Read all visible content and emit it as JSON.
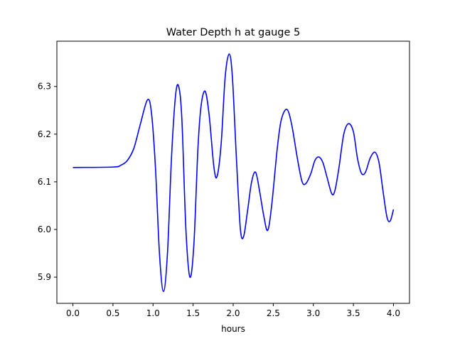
{
  "chart_data": {
    "type": "line",
    "title": "Water Depth h at gauge 5",
    "xlabel": "hours",
    "ylabel": "",
    "xlim": [
      -0.2,
      4.2
    ],
    "ylim": [
      5.845,
      6.395
    ],
    "x_ticks": [
      {
        "value": 0.0,
        "label": "0.0"
      },
      {
        "value": 0.5,
        "label": "0.5"
      },
      {
        "value": 1.0,
        "label": "1.0"
      },
      {
        "value": 1.5,
        "label": "1.5"
      },
      {
        "value": 2.0,
        "label": "2.0"
      },
      {
        "value": 2.5,
        "label": "2.5"
      },
      {
        "value": 3.0,
        "label": "3.0"
      },
      {
        "value": 3.5,
        "label": "3.5"
      },
      {
        "value": 4.0,
        "label": "4.0"
      }
    ],
    "y_ticks": [
      {
        "value": 5.9,
        "label": "5.9"
      },
      {
        "value": 6.0,
        "label": "6.0"
      },
      {
        "value": 6.1,
        "label": "6.1"
      },
      {
        "value": 6.2,
        "label": "6.2"
      },
      {
        "value": 6.3,
        "label": "6.3"
      }
    ],
    "grid": false,
    "series": [
      {
        "color": "#0000ff",
        "points": [
          [
            0.0,
            6.13
          ],
          [
            0.5,
            6.131
          ],
          [
            0.6,
            6.135
          ],
          [
            0.68,
            6.145
          ],
          [
            0.76,
            6.17
          ],
          [
            0.84,
            6.22
          ],
          [
            0.93,
            6.272
          ],
          [
            0.98,
            6.245
          ],
          [
            1.03,
            6.13
          ],
          [
            1.08,
            5.95
          ],
          [
            1.13,
            5.87
          ],
          [
            1.18,
            5.95
          ],
          [
            1.23,
            6.15
          ],
          [
            1.28,
            6.28
          ],
          [
            1.32,
            6.3
          ],
          [
            1.36,
            6.23
          ],
          [
            1.41,
            6.0
          ],
          [
            1.46,
            5.9
          ],
          [
            1.51,
            5.97
          ],
          [
            1.56,
            6.17
          ],
          [
            1.6,
            6.26
          ],
          [
            1.65,
            6.29
          ],
          [
            1.7,
            6.24
          ],
          [
            1.76,
            6.13
          ],
          [
            1.8,
            6.112
          ],
          [
            1.85,
            6.18
          ],
          [
            1.9,
            6.32
          ],
          [
            1.95,
            6.368
          ],
          [
            1.99,
            6.32
          ],
          [
            2.04,
            6.15
          ],
          [
            2.09,
            6.0
          ],
          [
            2.13,
            5.985
          ],
          [
            2.18,
            6.04
          ],
          [
            2.23,
            6.1
          ],
          [
            2.28,
            6.12
          ],
          [
            2.33,
            6.08
          ],
          [
            2.38,
            6.03
          ],
          [
            2.43,
            5.998
          ],
          [
            2.48,
            6.05
          ],
          [
            2.55,
            6.17
          ],
          [
            2.6,
            6.23
          ],
          [
            2.67,
            6.252
          ],
          [
            2.73,
            6.22
          ],
          [
            2.8,
            6.15
          ],
          [
            2.86,
            6.1
          ],
          [
            2.91,
            6.097
          ],
          [
            2.97,
            6.118
          ],
          [
            3.02,
            6.145
          ],
          [
            3.07,
            6.152
          ],
          [
            3.12,
            6.14
          ],
          [
            3.17,
            6.11
          ],
          [
            3.23,
            6.075
          ],
          [
            3.27,
            6.082
          ],
          [
            3.32,
            6.13
          ],
          [
            3.38,
            6.2
          ],
          [
            3.44,
            6.222
          ],
          [
            3.5,
            6.205
          ],
          [
            3.55,
            6.15
          ],
          [
            3.6,
            6.118
          ],
          [
            3.65,
            6.12
          ],
          [
            3.71,
            6.15
          ],
          [
            3.77,
            6.162
          ],
          [
            3.82,
            6.14
          ],
          [
            3.87,
            6.08
          ],
          [
            3.92,
            6.025
          ],
          [
            3.96,
            6.018
          ],
          [
            4.0,
            6.042
          ]
        ]
      }
    ]
  }
}
